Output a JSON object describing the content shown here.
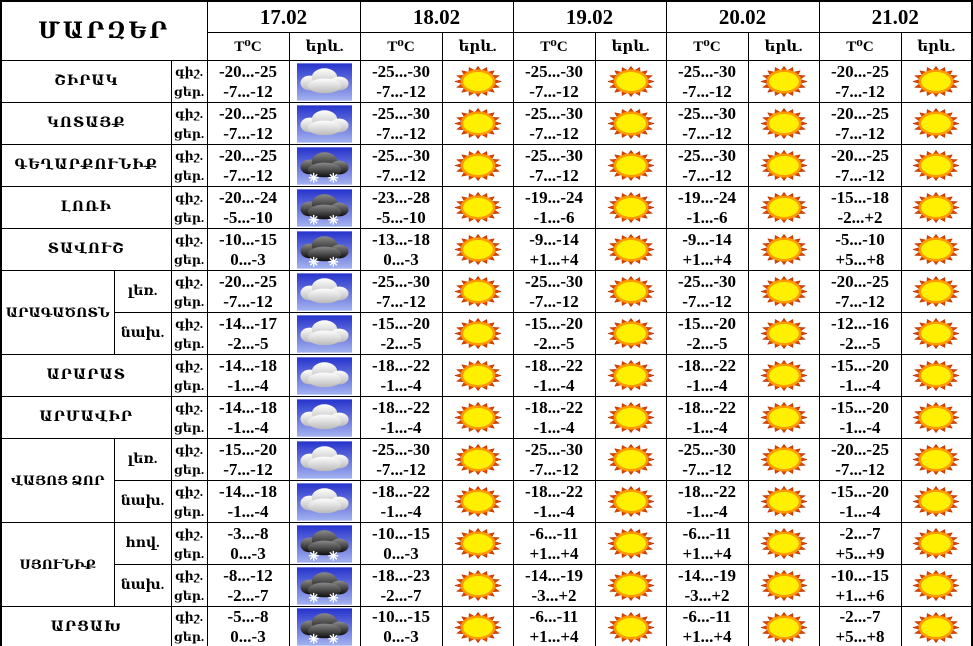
{
  "title": "ՄԱՐԶԵՐ",
  "columns": {
    "temp_label": "T⁰C",
    "phenomena_label": "երև."
  },
  "dates": [
    "17.02",
    "18.02",
    "19.02",
    "20.02",
    "21.02"
  ],
  "row_labels": {
    "night": "գիշ.",
    "day": "ցեր."
  },
  "icon_names": {
    "sun": "sun-icon",
    "cloud": "cloud-icon",
    "snow": "snow-cloud-icon"
  },
  "colors": {
    "border": "#000000",
    "icon_sky_top": "#2633cc",
    "icon_sky_bottom": "#a4b2f0",
    "sun_center": "#ffef00",
    "sun_ring": "#ff9900",
    "sun_rays": "#dd4400",
    "cloud_light_top": "#ffffff",
    "cloud_light_bottom": "#b9b9b9",
    "cloud_dark_top": "#8a8a8a",
    "cloud_dark_bottom": "#0d0d0d",
    "snowflake": "#ffffff"
  },
  "rows": [
    {
      "region": "ՇԻՐԱԿ",
      "rowspan": 1,
      "zone": null,
      "cells": [
        {
          "night": "-20...-25",
          "day": "-7...-12",
          "icon": "cloud"
        },
        {
          "night": "-25...-30",
          "day": "-7...-12",
          "icon": "sun"
        },
        {
          "night": "-25...-30",
          "day": "-7...-12",
          "icon": "sun"
        },
        {
          "night": "-25...-30",
          "day": "-7...-12",
          "icon": "sun"
        },
        {
          "night": "-20...-25",
          "day": "-7...-12",
          "icon": "sun"
        }
      ]
    },
    {
      "region": "ԿՈՏԱՅՔ",
      "rowspan": 1,
      "zone": null,
      "cells": [
        {
          "night": "-20...-25",
          "day": "-7...-12",
          "icon": "cloud"
        },
        {
          "night": "-25...-30",
          "day": "-7...-12",
          "icon": "sun"
        },
        {
          "night": "-25...-30",
          "day": "-7...-12",
          "icon": "sun"
        },
        {
          "night": "-25...-30",
          "day": "-7...-12",
          "icon": "sun"
        },
        {
          "night": "-20...-25",
          "day": "-7...-12",
          "icon": "sun"
        }
      ]
    },
    {
      "region": "ԳԵՂԱՐՔՈՒՆԻՔ",
      "rowspan": 1,
      "zone": null,
      "cells": [
        {
          "night": "-20...-25",
          "day": "-7...-12",
          "icon": "snow"
        },
        {
          "night": "-25...-30",
          "day": "-7...-12",
          "icon": "sun"
        },
        {
          "night": "-25...-30",
          "day": "-7...-12",
          "icon": "sun"
        },
        {
          "night": "-25...-30",
          "day": "-7...-12",
          "icon": "sun"
        },
        {
          "night": "-20...-25",
          "day": "-7...-12",
          "icon": "sun"
        }
      ]
    },
    {
      "region": "ԼՈՌԻ",
      "rowspan": 1,
      "zone": null,
      "cells": [
        {
          "night": "-20...-24",
          "day": "-5...-10",
          "icon": "snow"
        },
        {
          "night": "-23...-28",
          "day": "-5...-10",
          "icon": "sun"
        },
        {
          "night": "-19...-24",
          "day": "-1...-6",
          "icon": "sun"
        },
        {
          "night": "-19...-24",
          "day": "-1...-6",
          "icon": "sun"
        },
        {
          "night": "-15...-18",
          "day": "-2...+2",
          "icon": "sun"
        }
      ]
    },
    {
      "region": "ՏԱՎՈՒՇ",
      "rowspan": 1,
      "zone": null,
      "cells": [
        {
          "night": "-10...-15",
          "day": "0...-3",
          "icon": "snow"
        },
        {
          "night": "-13...-18",
          "day": "0...-3",
          "icon": "sun"
        },
        {
          "night": "-9...-14",
          "day": "+1...+4",
          "icon": "sun"
        },
        {
          "night": "-9...-14",
          "day": "+1...+4",
          "icon": "sun"
        },
        {
          "night": "-5...-10",
          "day": "+5...+8",
          "icon": "sun"
        }
      ]
    },
    {
      "region": "ԱՐԱԳԱԾՈՏՆ",
      "rowspan": 2,
      "zone": "լեռ.",
      "cells": [
        {
          "night": "-20...-25",
          "day": "-7...-12",
          "icon": "cloud"
        },
        {
          "night": "-25...-30",
          "day": "-7...-12",
          "icon": "sun"
        },
        {
          "night": "-25...-30",
          "day": "-7...-12",
          "icon": "sun"
        },
        {
          "night": "-25...-30",
          "day": "-7...-12",
          "icon": "sun"
        },
        {
          "night": "-20...-25",
          "day": "-7...-12",
          "icon": "sun"
        }
      ]
    },
    {
      "region": null,
      "rowspan": 0,
      "zone": "նախ.",
      "cells": [
        {
          "night": "-14...-17",
          "day": "-2...-5",
          "icon": "cloud"
        },
        {
          "night": "-15...-20",
          "day": "-2...-5",
          "icon": "sun"
        },
        {
          "night": "-15...-20",
          "day": "-2...-5",
          "icon": "sun"
        },
        {
          "night": "-15...-20",
          "day": "-2...-5",
          "icon": "sun"
        },
        {
          "night": "-12...-16",
          "day": "-2...-5",
          "icon": "sun"
        }
      ]
    },
    {
      "region": "ԱՐԱՐԱՏ",
      "rowspan": 1,
      "zone": null,
      "cells": [
        {
          "night": "-14...-18",
          "day": "-1...-4",
          "icon": "cloud"
        },
        {
          "night": "-18...-22",
          "day": "-1...-4",
          "icon": "sun"
        },
        {
          "night": "-18...-22",
          "day": "-1...-4",
          "icon": "sun"
        },
        {
          "night": "-18...-22",
          "day": "-1...-4",
          "icon": "sun"
        },
        {
          "night": "-15...-20",
          "day": "-1...-4",
          "icon": "sun"
        }
      ]
    },
    {
      "region": "ԱՐՄԱՎԻՐ",
      "rowspan": 1,
      "zone": null,
      "cells": [
        {
          "night": "-14...-18",
          "day": "-1...-4",
          "icon": "cloud"
        },
        {
          "night": "-18...-22",
          "day": "-1...-4",
          "icon": "sun"
        },
        {
          "night": "-18...-22",
          "day": "-1...-4",
          "icon": "sun"
        },
        {
          "night": "-18...-22",
          "day": "-1...-4",
          "icon": "sun"
        },
        {
          "night": "-15...-20",
          "day": "-1...-4",
          "icon": "sun"
        }
      ]
    },
    {
      "region": "ՎԱՅՈՑ ՁՈՐ",
      "rowspan": 2,
      "zone": "լեռ.",
      "cells": [
        {
          "night": "-15...-20",
          "day": "-7...-12",
          "icon": "cloud"
        },
        {
          "night": "-25...-30",
          "day": "-7...-12",
          "icon": "sun"
        },
        {
          "night": "-25...-30",
          "day": "-7...-12",
          "icon": "sun"
        },
        {
          "night": "-25...-30",
          "day": "-7...-12",
          "icon": "sun"
        },
        {
          "night": "-20...-25",
          "day": "-7...-12",
          "icon": "sun"
        }
      ]
    },
    {
      "region": null,
      "rowspan": 0,
      "zone": "նախ.",
      "cells": [
        {
          "night": "-14...-18",
          "day": "-1...-4",
          "icon": "cloud"
        },
        {
          "night": "-18...-22",
          "day": "-1...-4",
          "icon": "sun"
        },
        {
          "night": "-18...-22",
          "day": "-1...-4",
          "icon": "sun"
        },
        {
          "night": "-18...-22",
          "day": "-1...-4",
          "icon": "sun"
        },
        {
          "night": "-15...-20",
          "day": "-1...-4",
          "icon": "sun"
        }
      ]
    },
    {
      "region": "ՍՅՈՒՆԻՔ",
      "rowspan": 2,
      "zone": "հով.",
      "cells": [
        {
          "night": "-3...-8",
          "day": "0...-3",
          "icon": "snow"
        },
        {
          "night": "-10...-15",
          "day": "0...-3",
          "icon": "sun"
        },
        {
          "night": "-6...-11",
          "day": "+1...+4",
          "icon": "sun"
        },
        {
          "night": "-6...-11",
          "day": "+1...+4",
          "icon": "sun"
        },
        {
          "night": "-2...-7",
          "day": "+5...+9",
          "icon": "sun"
        }
      ]
    },
    {
      "region": null,
      "rowspan": 0,
      "zone": "նախ.",
      "cells": [
        {
          "night": "-8...-12",
          "day": "-2...-7",
          "icon": "snow"
        },
        {
          "night": "-18...-23",
          "day": "-2...-7",
          "icon": "sun"
        },
        {
          "night": "-14...-19",
          "day": "-3...+2",
          "icon": "sun"
        },
        {
          "night": "-14...-19",
          "day": "-3...+2",
          "icon": "sun"
        },
        {
          "night": "-10...-15",
          "day": "+1...+6",
          "icon": "sun"
        }
      ]
    },
    {
      "region": "ԱՐՑԱԽ",
      "rowspan": 1,
      "zone": null,
      "cells": [
        {
          "night": "-5...-8",
          "day": "0...-3",
          "icon": "snow"
        },
        {
          "night": "-10...-15",
          "day": "0...-3",
          "icon": "sun"
        },
        {
          "night": "-6...-11",
          "day": "+1...+4",
          "icon": "sun"
        },
        {
          "night": "-6...-11",
          "day": "+1...+4",
          "icon": "sun"
        },
        {
          "night": "-2...-7",
          "day": "+5...+8",
          "icon": "sun"
        }
      ]
    }
  ]
}
